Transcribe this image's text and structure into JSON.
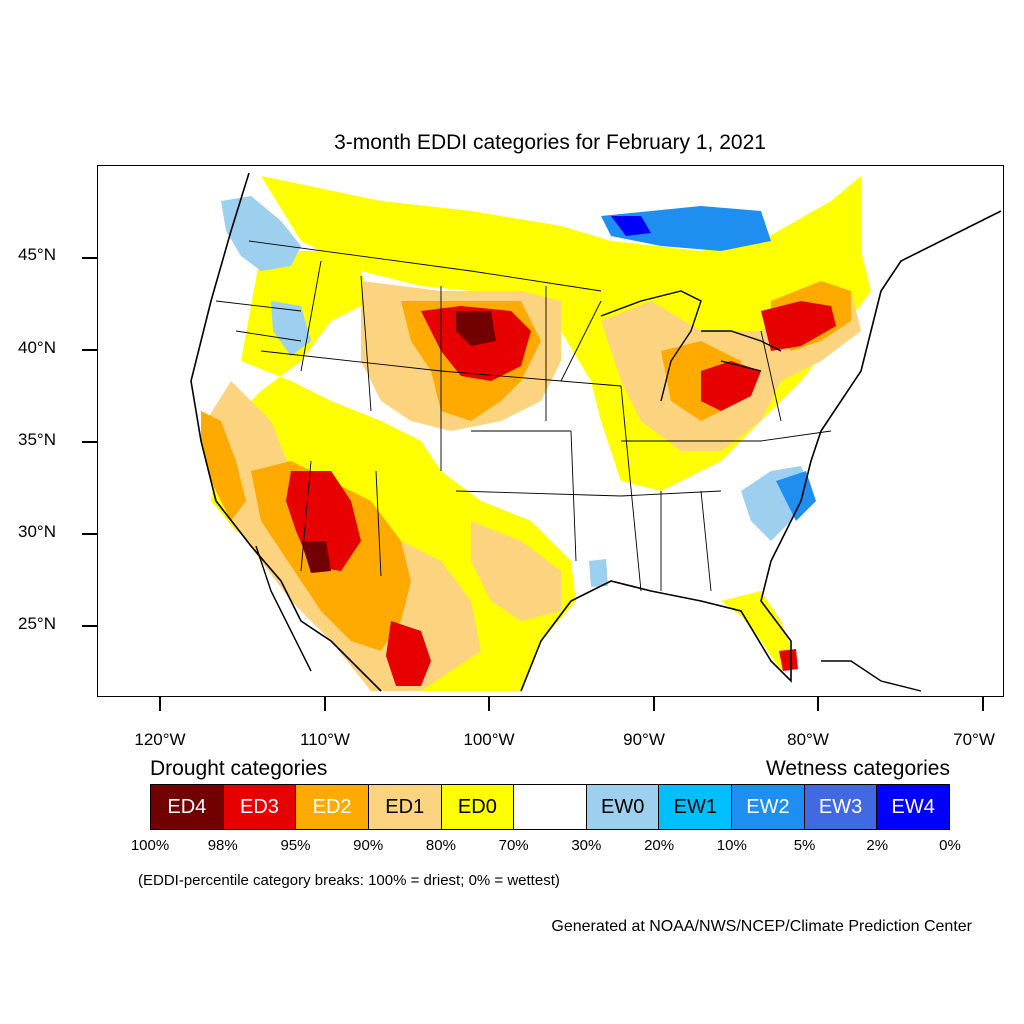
{
  "title": "3-month EDDI categories for February 1, 2021",
  "lat_labels": [
    "45°N",
    "40°N",
    "35°N",
    "30°N",
    "25°N"
  ],
  "lon_labels": [
    "120°W",
    "110°W",
    "100°W",
    "90°W",
    "80°W",
    "70°W"
  ],
  "legend": {
    "drought_heading": "Drought categories",
    "wetness_heading": "Wetness categories",
    "categories": [
      {
        "label": "ED4",
        "color": "#730000",
        "text_color": "#ffffff"
      },
      {
        "label": "ED3",
        "color": "#e60000",
        "text_color": "#ffffff"
      },
      {
        "label": "ED2",
        "color": "#ffaa00",
        "text_color": "#ffffff"
      },
      {
        "label": "ED1",
        "color": "#fcd37f",
        "text_color": "#000000"
      },
      {
        "label": "ED0",
        "color": "#ffff00",
        "text_color": "#000000"
      },
      {
        "label": "",
        "color": "#ffffff",
        "text_color": "#000000"
      },
      {
        "label": "EW0",
        "color": "#9dcfee",
        "text_color": "#000000"
      },
      {
        "label": "EW1",
        "color": "#00bfff",
        "text_color": "#000000"
      },
      {
        "label": "EW2",
        "color": "#1e8ff0",
        "text_color": "#ffffff"
      },
      {
        "label": "EW3",
        "color": "#4169e1",
        "text_color": "#ffffff"
      },
      {
        "label": "EW4",
        "color": "#0000ff",
        "text_color": "#ffffff"
      }
    ],
    "percent_breaks": [
      "100%",
      "98%",
      "95%",
      "90%",
      "80%",
      "70%",
      "30%",
      "20%",
      "10%",
      "5%",
      "2%",
      "0%"
    ]
  },
  "note": "(EDDI-percentile category breaks: 100% = driest; 0% = wettest)",
  "credit": "Generated at NOAA/NWS/NCEP/Climate Prediction Center"
}
